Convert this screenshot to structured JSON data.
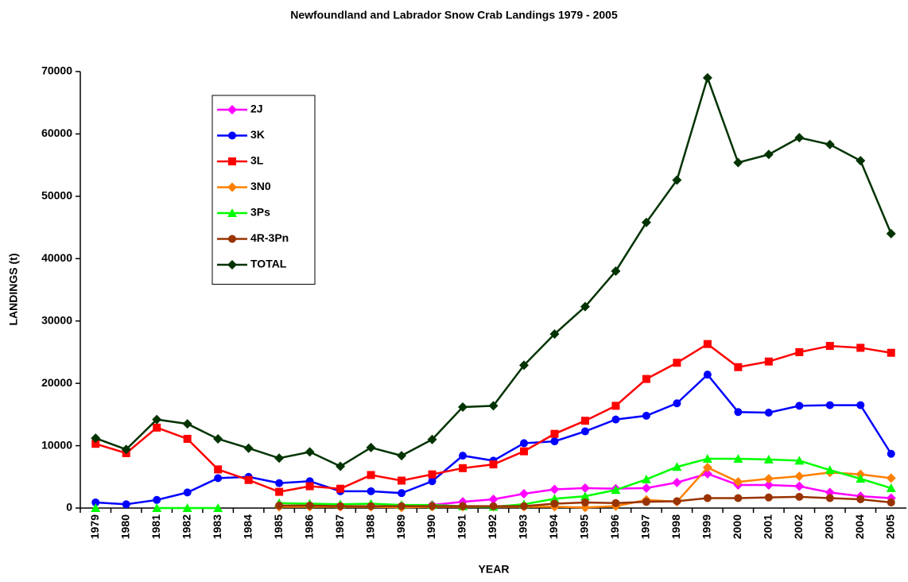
{
  "chart_data": {
    "type": "line",
    "title": "Newfoundland and Labrador Snow Crab Landings 1979 - 2005",
    "x_label": "YEAR",
    "y_label": "LANDINGS (t)",
    "categories": [
      "1979",
      "1980",
      "1981",
      "1982",
      "1983",
      "1984",
      "1985",
      "1986",
      "1987",
      "1988",
      "1989",
      "1990",
      "1991",
      "1992",
      "1993",
      "1994",
      "1995",
      "1996",
      "1997",
      "1998",
      "1999",
      "2000",
      "2001",
      "2002",
      "2003",
      "2004",
      "2005"
    ],
    "ylim": [
      0,
      70000
    ],
    "yticks": [
      0,
      10000,
      20000,
      30000,
      40000,
      50000,
      60000,
      70000
    ],
    "legend": "upper left",
    "series": [
      {
        "name": "2J",
        "color": "#ff00ff",
        "marker": "diamond",
        "values": [
          null,
          null,
          null,
          null,
          null,
          null,
          300,
          300,
          200,
          300,
          300,
          500,
          1000,
          1400,
          2300,
          3000,
          3200,
          3100,
          3200,
          4100,
          5500,
          3700,
          3700,
          3500,
          2500,
          1900,
          1600
        ]
      },
      {
        "name": "3K",
        "color": "#0000ff",
        "marker": "circle",
        "values": [
          900,
          600,
          1300,
          2500,
          4800,
          5000,
          4000,
          4300,
          2700,
          2700,
          2400,
          4300,
          8400,
          7600,
          10400,
          10700,
          12300,
          14200,
          14800,
          16800,
          21400,
          15400,
          15300,
          16400,
          16500,
          16500,
          8700
        ]
      },
      {
        "name": "3L",
        "color": "#ff0000",
        "marker": "square",
        "values": [
          10300,
          8800,
          12900,
          11100,
          6200,
          4500,
          2600,
          3500,
          3100,
          5300,
          4400,
          5400,
          6400,
          7000,
          9100,
          11900,
          14000,
          16400,
          20700,
          23300,
          26300,
          22600,
          23500,
          25000,
          26000,
          25700,
          24900
        ]
      },
      {
        "name": "3N0",
        "color": "#ff8000",
        "marker": "diamond",
        "values": [
          null,
          null,
          null,
          null,
          null,
          null,
          200,
          200,
          200,
          200,
          100,
          200,
          200,
          200,
          200,
          200,
          100,
          300,
          1300,
          1000,
          6500,
          4200,
          4700,
          5100,
          5700,
          5400,
          4800
        ]
      },
      {
        "name": "3Ps",
        "color": "#00ff00",
        "marker": "triangle",
        "values": [
          0,
          null,
          0,
          0,
          0,
          null,
          800,
          700,
          600,
          700,
          500,
          500,
          300,
          200,
          600,
          1500,
          1900,
          2900,
          4600,
          6600,
          7900,
          7900,
          7800,
          7600,
          6100,
          4700,
          3200
        ]
      },
      {
        "name": "4R-3Pn",
        "color": "#993300",
        "marker": "circle",
        "values": [
          null,
          null,
          null,
          null,
          null,
          null,
          400,
          400,
          300,
          300,
          300,
          300,
          300,
          300,
          300,
          700,
          900,
          800,
          1000,
          1100,
          1600,
          1600,
          1700,
          1800,
          1600,
          1400,
          900
        ]
      },
      {
        "name": "TOTAL",
        "color": "#003300",
        "marker": "diamond",
        "values": [
          11200,
          9400,
          14200,
          13500,
          11100,
          9600,
          8000,
          9000,
          6700,
          9700,
          8400,
          11000,
          16200,
          16400,
          22900,
          27900,
          32300,
          38000,
          45800,
          52600,
          69000,
          55400,
          56700,
          59400,
          58300,
          55700,
          44000
        ]
      }
    ]
  }
}
